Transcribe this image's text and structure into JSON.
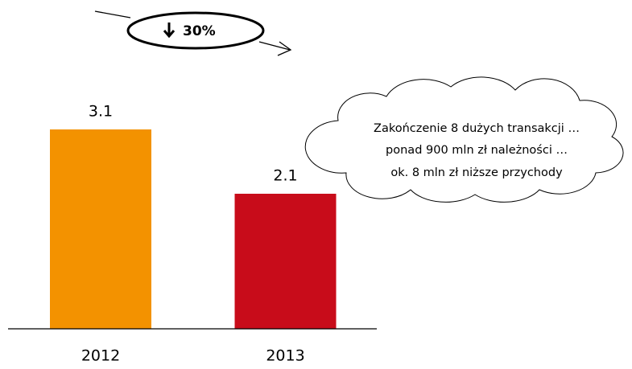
{
  "chart_data": {
    "type": "bar",
    "categories": [
      "2012",
      "2013"
    ],
    "values": [
      3.1,
      2.1
    ],
    "colors": [
      "#f39200",
      "#c80c1a"
    ],
    "ylim": [
      0,
      3.1
    ],
    "annotation": "30%",
    "note_lines": [
      "Zakończenie 8 dużych transakcji …",
      "ponad 900 mln zł należności …",
      "ok. 8 mln zł niższe przychody"
    ]
  }
}
